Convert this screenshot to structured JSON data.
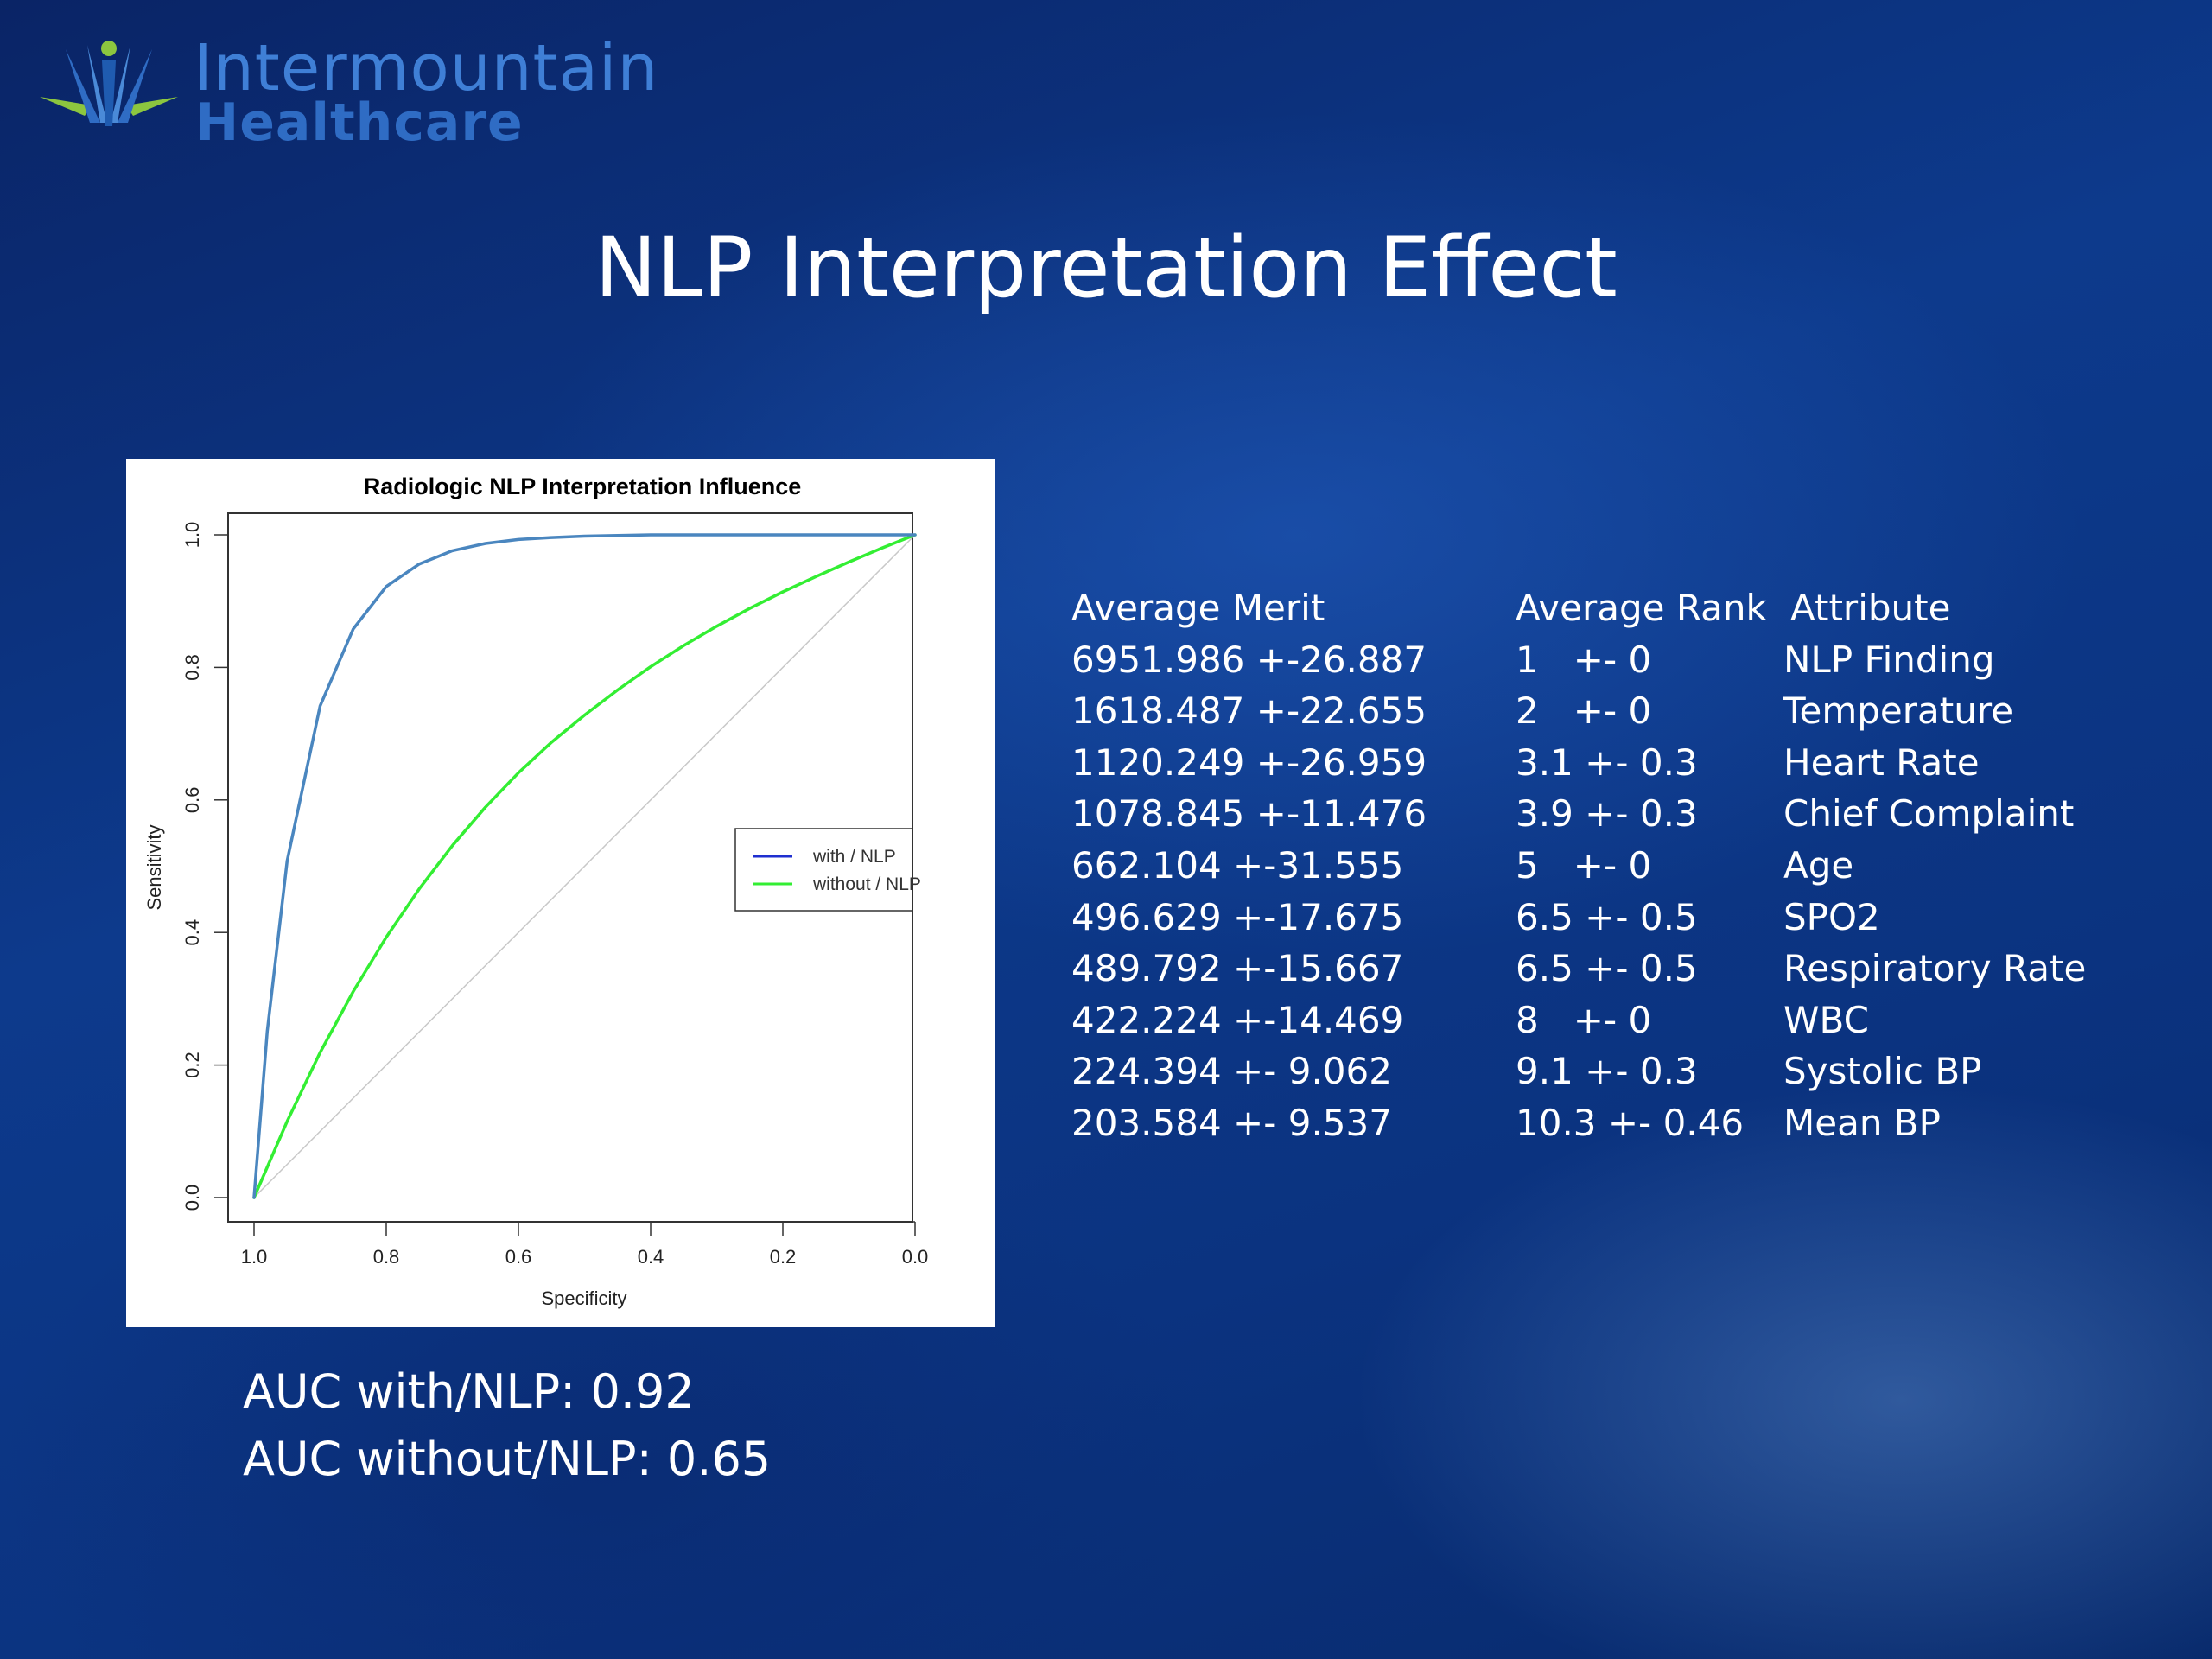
{
  "logo": {
    "line1": "Intermountain",
    "line2": "Healthcare"
  },
  "slide_title": "NLP Interpretation Effect",
  "auc": {
    "with": "AUC with/NLP: 0.92",
    "without": "AUC without/NLP: 0.65"
  },
  "table": {
    "headers": [
      "Average Merit",
      "Average Rank",
      "Attribute"
    ],
    "rows": [
      [
        "6951.986 +-26.887",
        "1   +- 0",
        "NLP Finding"
      ],
      [
        "1618.487 +-22.655",
        "2   +- 0",
        "Temperature"
      ],
      [
        "1120.249 +-26.959",
        "3.1 +- 0.3",
        "Heart Rate"
      ],
      [
        "1078.845 +-11.476",
        "3.9 +- 0.3",
        "Chief Complaint"
      ],
      [
        "662.104 +-31.555",
        "5   +- 0",
        "Age"
      ],
      [
        "496.629 +-17.675",
        "6.5 +- 0.5",
        "SPO2"
      ],
      [
        "489.792 +-15.667",
        "6.5 +- 0.5",
        "Respiratory Rate"
      ],
      [
        "422.224 +-14.469",
        "8   +- 0",
        "WBC"
      ],
      [
        "224.394 +- 9.062",
        "9.1 +- 0.3",
        "Systolic BP"
      ],
      [
        "203.584 +- 9.537",
        "10.3 +- 0.46",
        "Mean BP"
      ]
    ]
  },
  "chart_data": {
    "type": "line",
    "title": "Radiologic NLP Interpretation Influence",
    "xlabel": "Specificity",
    "ylabel": "Sensitivity",
    "xlim": [
      1.0,
      0.0
    ],
    "ylim": [
      0.0,
      1.0
    ],
    "x_ticks": [
      "1.0",
      "0.8",
      "0.6",
      "0.4",
      "0.2",
      "0.0"
    ],
    "y_ticks": [
      "0.0",
      "0.2",
      "0.4",
      "0.6",
      "0.8",
      "1.0"
    ],
    "legend_position": "center-right",
    "grid": false,
    "series": [
      {
        "name": "with / NLP",
        "color": "#4a86bf",
        "legend_color": "#1f2fd0",
        "x": [
          1.0,
          0.98,
          0.95,
          0.9,
          0.85,
          0.8,
          0.75,
          0.7,
          0.65,
          0.6,
          0.55,
          0.5,
          0.45,
          0.4,
          0.3,
          0.2,
          0.1,
          0.0
        ],
        "y": [
          0.0,
          0.251,
          0.508,
          0.742,
          0.858,
          0.922,
          0.956,
          0.976,
          0.987,
          0.993,
          0.996,
          0.998,
          0.999,
          1.0,
          1.0,
          1.0,
          1.0,
          1.0
        ]
      },
      {
        "name": "without / NLP",
        "color": "#33ee33",
        "legend_color": "#33ee33",
        "x": [
          1.0,
          0.95,
          0.9,
          0.85,
          0.8,
          0.75,
          0.7,
          0.65,
          0.6,
          0.55,
          0.5,
          0.45,
          0.4,
          0.35,
          0.3,
          0.25,
          0.2,
          0.15,
          0.1,
          0.05,
          0.0
        ],
        "y": [
          0.0,
          0.115,
          0.219,
          0.311,
          0.393,
          0.466,
          0.531,
          0.589,
          0.641,
          0.687,
          0.728,
          0.766,
          0.801,
          0.833,
          0.862,
          0.889,
          0.914,
          0.937,
          0.959,
          0.98,
          1.0
        ]
      },
      {
        "name": "",
        "color": "#c8c8c8",
        "x": [
          1.0,
          0.0
        ],
        "y": [
          0.0,
          1.0
        ]
      }
    ]
  }
}
